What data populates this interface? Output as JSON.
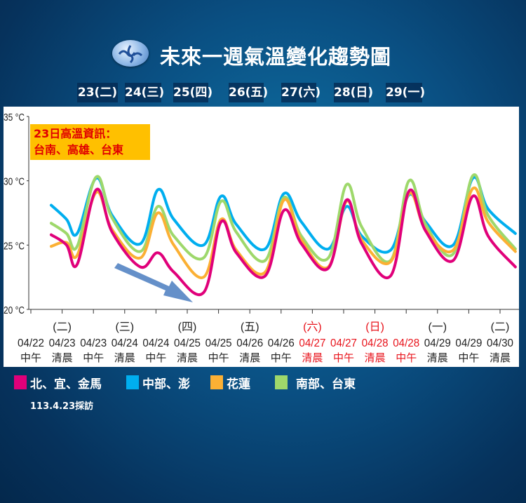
{
  "title": "未來一週氣溫變化趨勢圖",
  "logo_icon": "cwa-logo-icon",
  "days": [
    "23(二)",
    "24(三)",
    "25(四)",
    "26(五)",
    "27(六)",
    "28(日)",
    "29(一)"
  ],
  "highlight_note": {
    "line1": "23日高溫資訊：",
    "line2": "台南、高雄、台東"
  },
  "survey_note": "113.4.23採訪",
  "chart_data": {
    "type": "line",
    "ylim": [
      20,
      35
    ],
    "yticks": [
      20,
      25,
      30,
      35
    ],
    "ytick_labels": [
      "20 °C",
      "25 °C",
      "30 °C",
      "35 °C"
    ],
    "grid": false,
    "legend_placement": "bottom",
    "categories": [
      {
        "weekday": "",
        "date": "04/22",
        "period": "中午",
        "weekend": false
      },
      {
        "weekday": "(二)",
        "date": "04/23",
        "period": "清晨",
        "weekend": false
      },
      {
        "weekday": "",
        "date": "04/23",
        "period": "中午",
        "weekend": false
      },
      {
        "weekday": "(三)",
        "date": "04/24",
        "period": "清晨",
        "weekend": false
      },
      {
        "weekday": "",
        "date": "04/24",
        "period": "中午",
        "weekend": false
      },
      {
        "weekday": "(四)",
        "date": "04/25",
        "period": "清晨",
        "weekend": false
      },
      {
        "weekday": "",
        "date": "04/25",
        "period": "中午",
        "weekend": false
      },
      {
        "weekday": "(五)",
        "date": "04/26",
        "period": "清晨",
        "weekend": false
      },
      {
        "weekday": "",
        "date": "04/26",
        "period": "中午",
        "weekend": false
      },
      {
        "weekday": "(六)",
        "date": "04/27",
        "period": "清晨",
        "weekend": true
      },
      {
        "weekday": "",
        "date": "04/27",
        "period": "中午",
        "weekend": true
      },
      {
        "weekday": "(日)",
        "date": "04/28",
        "period": "清晨",
        "weekend": true
      },
      {
        "weekday": "",
        "date": "04/28",
        "period": "中午",
        "weekend": true
      },
      {
        "weekday": "(一)",
        "date": "04/29",
        "period": "清晨",
        "weekend": false
      },
      {
        "weekday": "",
        "date": "04/29",
        "period": "中午",
        "weekend": false
      },
      {
        "weekday": "(二)",
        "date": "04/30",
        "period": "清晨",
        "weekend": false
      }
    ],
    "x": [
      0.65,
      1.14,
      1.48,
      2.09,
      2.6,
      3.5,
      4.06,
      4.57,
      5.52,
      6.08,
      6.57,
      7.49,
      8.09,
      8.65,
      9.51,
      10.09,
      10.58,
      11.5,
      12.09,
      12.62,
      13.5,
      14.13,
      14.62,
      15.49
    ],
    "series": [
      {
        "name": "中部、澎",
        "color": "#00aeef",
        "values": [
          28.1,
          27.0,
          25.9,
          30.2,
          27.3,
          25.1,
          29.3,
          27.0,
          25.0,
          28.8,
          26.6,
          24.7,
          29.0,
          26.8,
          24.7,
          28.0,
          25.7,
          24.6,
          28.9,
          26.8,
          25.0,
          30.2,
          27.8,
          25.9
        ]
      },
      {
        "name": "南部、台東",
        "color": "#9ed86b",
        "values": [
          26.7,
          25.9,
          24.9,
          30.3,
          27.1,
          24.5,
          28.0,
          25.7,
          24.0,
          28.4,
          26.0,
          23.8,
          28.7,
          25.7,
          24.0,
          29.7,
          26.4,
          23.8,
          30.0,
          26.6,
          24.3,
          30.4,
          27.3,
          24.7
        ]
      },
      {
        "name": "花蓮",
        "color": "#fbb034",
        "values": [
          24.9,
          25.2,
          24.2,
          29.1,
          26.2,
          24.0,
          27.5,
          25.0,
          22.5,
          27.0,
          24.6,
          22.9,
          28.5,
          25.4,
          23.3,
          28.4,
          25.4,
          23.7,
          29.0,
          26.2,
          24.6,
          29.4,
          26.8,
          24.5
        ]
      },
      {
        "name": "北、宜、金馬",
        "color": "#e0007a",
        "values": [
          25.8,
          25.0,
          23.5,
          29.3,
          26.0,
          23.3,
          24.4,
          22.9,
          21.3,
          26.8,
          24.4,
          22.6,
          27.7,
          25.1,
          23.2,
          28.5,
          25.1,
          22.6,
          29.2,
          26.1,
          23.8,
          28.8,
          25.7,
          23.3
        ]
      }
    ],
    "trend_arrow": {
      "direction": "down",
      "color": "#4a7cc0"
    },
    "legend": [
      {
        "label": "北、宜、金馬",
        "color": "#e0007a"
      },
      {
        "label": "中部、澎",
        "color": "#00aeef"
      },
      {
        "label": "花蓮",
        "color": "#fbb034"
      },
      {
        "label": "南部、台東",
        "color": "#9ed86b"
      }
    ]
  }
}
